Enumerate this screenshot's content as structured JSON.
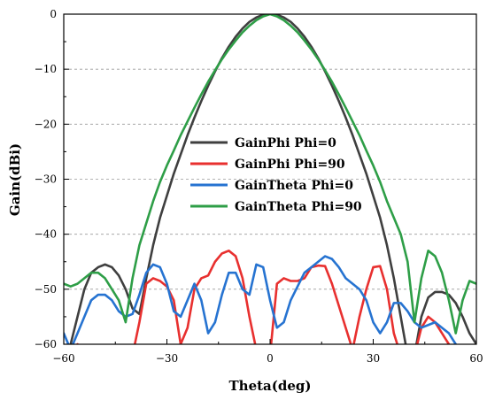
{
  "chart_data": {
    "type": "line",
    "title": "",
    "xlabel": "Theta(deg)",
    "ylabel": "Gain(dBi)",
    "xlim": [
      -60,
      60
    ],
    "ylim": [
      -60,
      0
    ],
    "xticks": [
      -60,
      -30,
      0,
      30,
      60
    ],
    "xtick_labels": [
      "−60",
      "−30",
      "0",
      "30",
      "60"
    ],
    "yticks": [
      0,
      -10,
      -20,
      -30,
      -40,
      -50,
      -60
    ],
    "ytick_labels": [
      "0",
      "−10",
      "−20",
      "−30",
      "−40",
      "−50",
      "−60"
    ],
    "grid": "horizontal dashed",
    "legend_position": "center-left",
    "series": [
      {
        "name": "GainPhi Phi=0",
        "color": "#3f3f3f",
        "x": [
          -60,
          -58,
          -56,
          -54,
          -52,
          -50,
          -48,
          -46,
          -44,
          -42,
          -40,
          -38,
          -36,
          -34,
          -32,
          -30,
          -28,
          -26,
          -24,
          -22,
          -20,
          -18,
          -16,
          -14,
          -12,
          -10,
          -8,
          -6,
          -4,
          -2,
          0,
          2,
          4,
          6,
          8,
          10,
          12,
          14,
          16,
          18,
          20,
          22,
          24,
          26,
          28,
          30,
          32,
          34,
          36,
          38,
          40,
          42,
          44,
          46,
          48,
          50,
          52,
          54,
          56,
          58,
          60
        ],
        "y": [
          -62,
          -60,
          -55,
          -50,
          -47,
          -46,
          -45.5,
          -46,
          -47.5,
          -50,
          -53.5,
          -54.5,
          -48,
          -42,
          -37,
          -33,
          -29,
          -25.5,
          -22,
          -18.8,
          -15.8,
          -13,
          -10.4,
          -8,
          -5.9,
          -4.1,
          -2.6,
          -1.4,
          -0.6,
          -0.1,
          0,
          -0.1,
          -0.6,
          -1.4,
          -2.6,
          -4.1,
          -5.9,
          -8,
          -10.4,
          -13,
          -15.8,
          -18.8,
          -22,
          -25.5,
          -29,
          -33,
          -37,
          -42,
          -48,
          -55,
          -62,
          -62,
          -55,
          -51.5,
          -50.5,
          -50.5,
          -51,
          -52.5,
          -55,
          -58,
          -60
        ]
      },
      {
        "name": "GainPhi Phi=90",
        "color": "#e8302f",
        "x": [
          -60,
          -58,
          -56,
          -54,
          -52,
          -50,
          -48,
          -46,
          -44,
          -42,
          -40,
          -38,
          -36,
          -34,
          -32,
          -30,
          -28,
          -26,
          -24,
          -22,
          -20,
          -18,
          -16,
          -14,
          -12,
          -10,
          -8,
          -6,
          -4,
          -2,
          0,
          2,
          4,
          6,
          8,
          10,
          12,
          14,
          16,
          18,
          20,
          22,
          24,
          26,
          28,
          30,
          32,
          34,
          36,
          38,
          40,
          42,
          44,
          46,
          48,
          50,
          52,
          54,
          56,
          58,
          60
        ],
        "y": [
          -62,
          -61,
          -60,
          -62,
          -62,
          -62,
          -62,
          -62,
          -62,
          -62,
          -62,
          -56,
          -49,
          -48,
          -48.5,
          -49.5,
          -52,
          -60,
          -57,
          -50,
          -48,
          -47.5,
          -45,
          -43.5,
          -43,
          -44,
          -48,
          -55,
          -61,
          -62,
          -62,
          -49,
          -48,
          -48.5,
          -48.5,
          -48,
          -46,
          -45.7,
          -45.8,
          -49,
          -53,
          -57,
          -61,
          -55,
          -50,
          -46,
          -45.8,
          -50,
          -58,
          -62,
          -62,
          -62,
          -57,
          -55,
          -56,
          -58,
          -60,
          -62,
          -62,
          -62,
          -62
        ]
      },
      {
        "name": "GainTheta Phi=0",
        "color": "#2673d1",
        "x": [
          -60,
          -58,
          -56,
          -54,
          -52,
          -50,
          -48,
          -46,
          -44,
          -42,
          -40,
          -38,
          -36,
          -34,
          -32,
          -30,
          -28,
          -26,
          -24,
          -22,
          -20,
          -18,
          -16,
          -14,
          -12,
          -10,
          -8,
          -6,
          -4,
          -2,
          0,
          2,
          4,
          6,
          8,
          10,
          12,
          14,
          16,
          18,
          20,
          22,
          24,
          26,
          28,
          30,
          32,
          34,
          36,
          38,
          40,
          42,
          44,
          46,
          48,
          50,
          52,
          54,
          56,
          58,
          60
        ],
        "y": [
          -58,
          -61,
          -58,
          -55,
          -52,
          -51,
          -51,
          -52,
          -54,
          -55,
          -54.5,
          -51,
          -47,
          -45.5,
          -46,
          -49,
          -54,
          -55,
          -52,
          -49,
          -52,
          -58,
          -56,
          -51,
          -47,
          -47,
          -50,
          -51,
          -45.5,
          -46,
          -52,
          -57,
          -56,
          -52,
          -49.5,
          -47,
          -46,
          -45,
          -44,
          -44.5,
          -46,
          -48,
          -49,
          -50,
          -52,
          -56,
          -58,
          -56,
          -52.5,
          -52.5,
          -54,
          -56,
          -57,
          -56.5,
          -56,
          -57,
          -58,
          -60,
          -61,
          -61,
          -61
        ]
      },
      {
        "name": "GainTheta Phi=90",
        "color": "#2e9e47",
        "x": [
          -60,
          -58,
          -56,
          -54,
          -52,
          -50,
          -48,
          -46,
          -44,
          -42,
          -40,
          -38,
          -36,
          -34,
          -32,
          -30,
          -28,
          -26,
          -24,
          -22,
          -20,
          -18,
          -16,
          -14,
          -12,
          -10,
          -8,
          -6,
          -4,
          -2,
          0,
          2,
          4,
          6,
          8,
          10,
          12,
          14,
          16,
          18,
          20,
          22,
          24,
          26,
          28,
          30,
          32,
          34,
          36,
          38,
          40,
          42,
          44,
          46,
          48,
          50,
          52,
          54,
          56,
          58,
          60
        ],
        "y": [
          -49,
          -49.5,
          -49,
          -48,
          -47,
          -47,
          -48,
          -50,
          -52,
          -56,
          -48,
          -42,
          -38,
          -34,
          -30.5,
          -27.5,
          -24.8,
          -22,
          -19.5,
          -17,
          -14.6,
          -12.3,
          -10.2,
          -8.2,
          -6.4,
          -4.8,
          -3.3,
          -2.1,
          -1.1,
          -0.4,
          0,
          -0.4,
          -1.1,
          -2.1,
          -3.3,
          -4.8,
          -6.4,
          -8.2,
          -10.2,
          -12.3,
          -14.6,
          -17,
          -19.5,
          -22,
          -24.8,
          -27.5,
          -30.5,
          -34,
          -37,
          -40,
          -45,
          -56,
          -48,
          -43,
          -44,
          -47,
          -52,
          -58,
          -52,
          -48.5,
          -49
        ]
      }
    ]
  }
}
